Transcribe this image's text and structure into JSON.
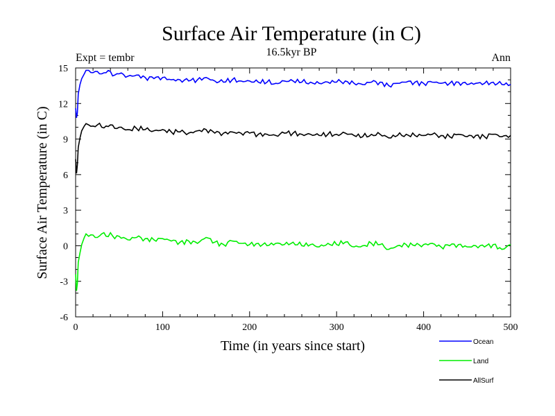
{
  "chart_data": {
    "type": "line",
    "title": "Surface Air Temperature (in C)",
    "subtitle": "16.5kyr BP",
    "left_label": "Expt = tembr",
    "right_label": "Ann",
    "xlabel": "Time (in years since start)",
    "ylabel": "Surface Air Temperature (in C)",
    "xlim": [
      0,
      500
    ],
    "ylim": [
      -6,
      15
    ],
    "xticks": [
      0,
      100,
      200,
      300,
      400,
      500
    ],
    "yticks": [
      -6,
      -3,
      0,
      3,
      6,
      9,
      12,
      15
    ],
    "grid": false,
    "legend_position": "bottom-right",
    "series": [
      {
        "name": "Ocean",
        "color": "#0000ff",
        "x": [
          0,
          1,
          2,
          3,
          5,
          7,
          10,
          12,
          15,
          20,
          25,
          30,
          35,
          40,
          45,
          50,
          60,
          70,
          80,
          90,
          100,
          110,
          120,
          130,
          140,
          150,
          160,
          170,
          180,
          190,
          200,
          210,
          220,
          230,
          240,
          250,
          260,
          270,
          280,
          290,
          300,
          310,
          320,
          330,
          340,
          350,
          360,
          370,
          380,
          390,
          400,
          410,
          420,
          430,
          440,
          450,
          460,
          470,
          480,
          490,
          500
        ],
        "values": [
          11.6,
          10.8,
          11.2,
          12.8,
          13.6,
          14.1,
          14.5,
          14.8,
          14.8,
          14.6,
          14.7,
          14.5,
          14.6,
          14.7,
          14.4,
          14.5,
          14.3,
          14.4,
          14.2,
          14.1,
          14.2,
          14.0,
          14.0,
          13.9,
          14.0,
          14.2,
          13.9,
          13.8,
          14.0,
          13.9,
          13.9,
          13.8,
          13.8,
          13.7,
          13.9,
          13.9,
          13.8,
          13.8,
          13.7,
          13.8,
          13.8,
          13.9,
          13.7,
          13.6,
          13.8,
          13.8,
          13.5,
          13.7,
          13.8,
          13.8,
          13.7,
          13.8,
          13.7,
          13.7,
          13.8,
          13.6,
          13.7,
          13.7,
          13.8,
          13.6,
          13.6
        ]
      },
      {
        "name": "Land",
        "color": "#00ee00",
        "x": [
          0,
          1,
          2,
          3,
          5,
          7,
          10,
          12,
          15,
          20,
          25,
          30,
          35,
          40,
          45,
          50,
          60,
          70,
          80,
          90,
          100,
          110,
          120,
          130,
          140,
          150,
          160,
          170,
          180,
          190,
          200,
          210,
          220,
          230,
          240,
          250,
          260,
          270,
          280,
          290,
          300,
          310,
          320,
          330,
          340,
          350,
          360,
          370,
          380,
          390,
          400,
          410,
          420,
          430,
          440,
          450,
          460,
          470,
          480,
          490,
          500
        ],
        "values": [
          -2.4,
          -3.8,
          -3.2,
          -1.4,
          -0.6,
          0.1,
          0.7,
          1.0,
          0.8,
          0.9,
          0.7,
          1.0,
          0.8,
          1.1,
          0.6,
          0.8,
          0.5,
          0.7,
          0.6,
          0.5,
          0.6,
          0.4,
          0.3,
          0.4,
          0.2,
          0.7,
          0.3,
          0.1,
          0.4,
          0.2,
          0.1,
          0.2,
          0.0,
          0.2,
          0.1,
          0.3,
          0.0,
          0.1,
          -0.1,
          0.2,
          0.1,
          0.3,
          -0.1,
          0.0,
          0.2,
          0.1,
          -0.3,
          0.0,
          0.1,
          0.0,
          0.1,
          0.2,
          -0.1,
          0.0,
          0.1,
          -0.1,
          0.0,
          -0.1,
          0.1,
          -0.3,
          0.1
        ]
      },
      {
        "name": "AllSurf",
        "color": "#000000",
        "x": [
          0,
          1,
          2,
          3,
          5,
          7,
          10,
          12,
          15,
          20,
          25,
          30,
          35,
          40,
          45,
          50,
          60,
          70,
          80,
          90,
          100,
          110,
          120,
          130,
          140,
          150,
          160,
          170,
          180,
          190,
          200,
          210,
          220,
          230,
          240,
          250,
          260,
          270,
          280,
          290,
          300,
          310,
          320,
          330,
          340,
          350,
          360,
          370,
          380,
          390,
          400,
          410,
          420,
          430,
          440,
          450,
          460,
          470,
          480,
          490,
          500
        ],
        "values": [
          7.3,
          6.1,
          6.8,
          8.3,
          9.1,
          9.7,
          10.1,
          10.3,
          10.2,
          10.1,
          10.2,
          10.0,
          10.1,
          10.2,
          9.9,
          10.0,
          9.8,
          9.9,
          9.8,
          9.7,
          9.8,
          9.6,
          9.6,
          9.5,
          9.7,
          9.8,
          9.5,
          9.5,
          9.6,
          9.5,
          9.5,
          9.4,
          9.4,
          9.3,
          9.5,
          9.5,
          9.4,
          9.4,
          9.3,
          9.4,
          9.4,
          9.5,
          9.3,
          9.2,
          9.4,
          9.4,
          9.1,
          9.3,
          9.4,
          9.3,
          9.3,
          9.4,
          9.3,
          9.2,
          9.4,
          9.2,
          9.3,
          9.2,
          9.4,
          9.2,
          9.3
        ]
      }
    ]
  }
}
